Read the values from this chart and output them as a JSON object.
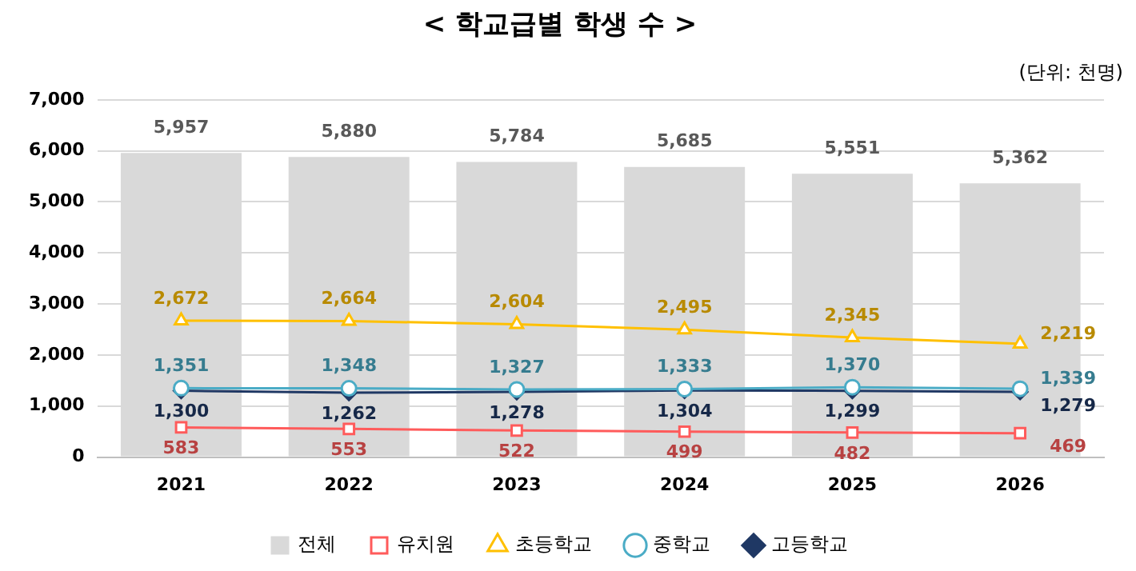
{
  "chart_data": {
    "type": "bar",
    "title": "< 학교급별 학생 수 >",
    "annotations": [
      "(단위: 천명)"
    ],
    "categories": [
      "2021",
      "2022",
      "2023",
      "2024",
      "2025",
      "2026"
    ],
    "series": [
      {
        "name": "전체",
        "color": "#d9d9d9",
        "values": [
          5957,
          5880,
          5784,
          5685,
          5551,
          5362
        ],
        "value_labels": [
          "5,957",
          "5,880",
          "5,784",
          "5,685",
          "5,551",
          "5,362"
        ]
      },
      {
        "name": "유치원",
        "type": "line",
        "marker": "square",
        "color": "#ff5b5b",
        "values": [
          583,
          553,
          522,
          499,
          482,
          469
        ],
        "value_labels": [
          "583",
          "553",
          "522",
          "499",
          "482",
          "469"
        ]
      },
      {
        "name": "초등학교",
        "type": "line",
        "marker": "triangle",
        "color": "#ffc000",
        "values": [
          2672,
          2664,
          2604,
          2495,
          2345,
          2219
        ],
        "value_labels": [
          "2,672",
          "2,664",
          "2,604",
          "2,495",
          "2,345",
          "2,219"
        ]
      },
      {
        "name": "중학교",
        "type": "line",
        "marker": "circle",
        "color": "#4bacc6",
        "values": [
          1351,
          1348,
          1327,
          1333,
          1370,
          1339
        ],
        "value_labels": [
          "1,351",
          "1,348",
          "1,327",
          "1,333",
          "1,370",
          "1,339"
        ]
      },
      {
        "name": "고등학교",
        "type": "line",
        "marker": "diamond",
        "color": "#1f3864",
        "values": [
          1300,
          1262,
          1278,
          1304,
          1299,
          1279
        ],
        "value_labels": [
          "1,300",
          "1,262",
          "1,278",
          "1,304",
          "1,299",
          "1,279"
        ]
      }
    ],
    "ylim": [
      0,
      7000
    ],
    "yticks": [
      {
        "value": 0,
        "label": "0"
      },
      {
        "value": 1000,
        "label": "1,000"
      },
      {
        "value": 2000,
        "label": "2,000"
      },
      {
        "value": 3000,
        "label": "3,000"
      },
      {
        "value": 4000,
        "label": "4,000"
      },
      {
        "value": 5000,
        "label": "5,000"
      },
      {
        "value": 6000,
        "label": "6,000"
      },
      {
        "value": 7000,
        "label": "7,000"
      }
    ],
    "grid": "y",
    "legend": "bottom"
  }
}
